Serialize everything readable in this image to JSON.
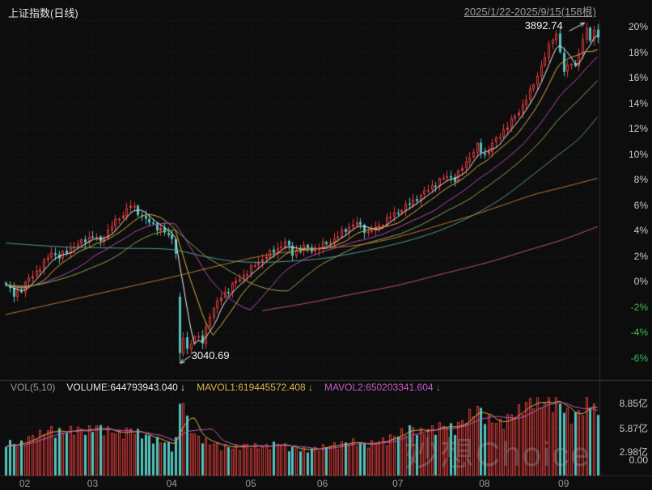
{
  "header": {
    "title": "上证指数(日线)",
    "date_range": "2025/1/22-2025/9/15(158根)"
  },
  "volume_header": {
    "indicator": "VOL(5,10)",
    "volume": "VOLUME:644793943.040 ↓",
    "mavol1": "MAVOL1:619445572.408 ↓",
    "mavol2": "MAVOL2:650203341.604 ↓"
  },
  "annotations": {
    "high": "3892.74",
    "low": "3040.69"
  },
  "watermark": "妙想Choice",
  "colors": {
    "background": "#0d0d0d",
    "up": "#e23b3b",
    "down": "#54c3bd",
    "grid": "#2b2b2b",
    "grid_vertical": "#232323",
    "separator": "#3a3a3a",
    "axis_text": "#c8c8c8",
    "axis_negative": "#3cb75c",
    "annotation": "#e8e8e8",
    "mavol1": "#d9b44a",
    "mavol2": "#c45ac4"
  },
  "chart_data": {
    "type": "candlestick",
    "title": "上证指数(日线)",
    "subtitle": "2025/1/22-2025/9/15(158根)",
    "bars": 158,
    "y_unit": "percent_change_vs_range_start",
    "y_ticks": [
      {
        "label": "20%",
        "value": 20
      },
      {
        "label": "18%",
        "value": 18
      },
      {
        "label": "16%",
        "value": 16
      },
      {
        "label": "14%",
        "value": 14
      },
      {
        "label": "12%",
        "value": 12
      },
      {
        "label": "10%",
        "value": 10
      },
      {
        "label": "8%",
        "value": 8
      },
      {
        "label": "6%",
        "value": 6
      },
      {
        "label": "4%",
        "value": 4
      },
      {
        "label": "2%",
        "value": 2
      },
      {
        "label": "0%",
        "value": 0
      },
      {
        "label": "-2%",
        "value": -2
      },
      {
        "label": "-4%",
        "value": -4
      },
      {
        "label": "-6%",
        "value": -6
      }
    ],
    "month_ticks": [
      {
        "label": "02",
        "bar": 5
      },
      {
        "label": "03",
        "bar": 23
      },
      {
        "label": "04",
        "bar": 44
      },
      {
        "label": "05",
        "bar": 65
      },
      {
        "label": "06",
        "bar": 84
      },
      {
        "label": "07",
        "bar": 104
      },
      {
        "label": "08",
        "bar": 127
      },
      {
        "label": "09",
        "bar": 148
      }
    ],
    "vol_ticks": [
      {
        "label": "8.85亿",
        "value": 8.85
      },
      {
        "label": "5.87亿",
        "value": 5.87
      },
      {
        "label": "2.98亿",
        "value": 2.98
      },
      {
        "label": "0.00",
        "value": 0
      }
    ],
    "high_annotation": {
      "bar": 154,
      "pct": 20.3,
      "price": "3892.74"
    },
    "low_annotation": {
      "bar": 46,
      "pct": -6.3,
      "price": "3040.69"
    },
    "close_path": [
      [
        0,
        -0.3
      ],
      [
        2,
        -1.1
      ],
      [
        4,
        -0.6
      ],
      [
        6,
        0.2
      ],
      [
        9,
        1.1
      ],
      [
        12,
        2.3
      ],
      [
        14,
        1.9
      ],
      [
        17,
        2.6
      ],
      [
        20,
        3.1
      ],
      [
        23,
        3.6
      ],
      [
        25,
        3.1
      ],
      [
        28,
        4.4
      ],
      [
        31,
        5.3
      ],
      [
        33,
        6.0
      ],
      [
        35,
        5.4
      ],
      [
        38,
        4.6
      ],
      [
        41,
        4.1
      ],
      [
        44,
        3.3
      ],
      [
        45,
        2.4
      ],
      [
        46,
        -5.8
      ],
      [
        47,
        -4.4
      ],
      [
        48,
        -5.4
      ],
      [
        50,
        -4.2
      ],
      [
        52,
        -4.8
      ],
      [
        54,
        -2.6
      ],
      [
        57,
        -1.2
      ],
      [
        60,
        -0.3
      ],
      [
        63,
        0.5
      ],
      [
        66,
        1.3
      ],
      [
        69,
        2.0
      ],
      [
        72,
        2.6
      ],
      [
        74,
        3.1
      ],
      [
        76,
        2.2
      ],
      [
        79,
        2.7
      ],
      [
        82,
        2.4
      ],
      [
        84,
        2.9
      ],
      [
        87,
        3.3
      ],
      [
        90,
        4.1
      ],
      [
        93,
        4.6
      ],
      [
        96,
        3.8
      ],
      [
        99,
        4.4
      ],
      [
        102,
        5.1
      ],
      [
        105,
        5.7
      ],
      [
        108,
        6.3
      ],
      [
        111,
        7.0
      ],
      [
        114,
        7.7
      ],
      [
        117,
        8.3
      ],
      [
        119,
        8.0
      ],
      [
        122,
        9.4
      ],
      [
        125,
        10.6
      ],
      [
        127,
        9.9
      ],
      [
        129,
        10.8
      ],
      [
        131,
        11.5
      ],
      [
        134,
        12.6
      ],
      [
        137,
        13.8
      ],
      [
        139,
        14.9
      ],
      [
        141,
        16.2
      ],
      [
        143,
        17.6
      ],
      [
        145,
        19.2
      ],
      [
        146,
        19.4
      ],
      [
        147,
        18.0
      ],
      [
        148,
        16.4
      ],
      [
        149,
        16.9
      ],
      [
        150,
        17.3
      ],
      [
        151,
        16.8
      ],
      [
        152,
        17.9
      ],
      [
        153,
        18.9
      ],
      [
        154,
        19.9
      ],
      [
        155,
        19.1
      ],
      [
        156,
        19.6
      ],
      [
        157,
        19.2
      ]
    ],
    "overrides": {
      "0": {
        "open": -0.1
      },
      "46": {
        "open": -1.2,
        "low": -6.3
      },
      "154": {
        "high": 20.3
      }
    },
    "ma_lines": [
      {
        "name": "MA5",
        "color": "#f0f0f0",
        "period": 5
      },
      {
        "name": "MA10",
        "color": "#d9b44a",
        "period": 10
      },
      {
        "name": "MA20",
        "color": "#b44bb4",
        "period": 20
      },
      {
        "name": "MA30",
        "color": "#93a84e",
        "period": 30
      },
      {
        "name": "MA60",
        "color": "#4f9e97",
        "path": [
          [
            0,
            3.0
          ],
          [
            16,
            2.7
          ],
          [
            32,
            2.6
          ],
          [
            44,
            2.5
          ],
          [
            52,
            2.0
          ],
          [
            60,
            1.6
          ],
          [
            68,
            1.5
          ],
          [
            76,
            1.6
          ],
          [
            84,
            1.8
          ],
          [
            92,
            2.2
          ],
          [
            100,
            2.7
          ],
          [
            108,
            3.3
          ],
          [
            116,
            4.1
          ],
          [
            124,
            5.2
          ],
          [
            132,
            6.6
          ],
          [
            140,
            8.4
          ],
          [
            146,
            9.8
          ],
          [
            152,
            11.2
          ],
          [
            157,
            12.9
          ]
        ]
      },
      {
        "name": "MA120",
        "color": "#bd7a30",
        "path": [
          [
            0,
            -2.6
          ],
          [
            12,
            -1.8
          ],
          [
            24,
            -1.0
          ],
          [
            36,
            -0.2
          ],
          [
            45,
            0.4
          ],
          [
            56,
            1.2
          ],
          [
            68,
            2.0
          ],
          [
            80,
            2.5
          ],
          [
            92,
            2.8
          ],
          [
            100,
            3.2
          ],
          [
            108,
            3.8
          ],
          [
            116,
            4.5
          ],
          [
            124,
            5.2
          ],
          [
            132,
            6.0
          ],
          [
            140,
            6.8
          ],
          [
            148,
            7.4
          ],
          [
            157,
            8.1
          ]
        ]
      },
      {
        "name": "MA250",
        "color": "#c9506e",
        "path": [
          [
            68,
            -2.3
          ],
          [
            80,
            -1.7
          ],
          [
            92,
            -1.0
          ],
          [
            104,
            -0.3
          ],
          [
            116,
            0.6
          ],
          [
            128,
            1.5
          ],
          [
            138,
            2.4
          ],
          [
            148,
            3.3
          ],
          [
            157,
            4.3
          ]
        ]
      }
    ],
    "volume_path": [
      [
        0,
        4.0
      ],
      [
        3,
        3.4
      ],
      [
        6,
        4.3
      ],
      [
        9,
        4.8
      ],
      [
        12,
        5.3
      ],
      [
        15,
        4.9
      ],
      [
        18,
        5.4
      ],
      [
        21,
        5.1
      ],
      [
        24,
        5.6
      ],
      [
        27,
        5.2
      ],
      [
        30,
        4.8
      ],
      [
        33,
        5.3
      ],
      [
        36,
        4.7
      ],
      [
        39,
        4.2
      ],
      [
        42,
        3.8
      ],
      [
        44,
        3.3
      ],
      [
        45,
        4.1
      ],
      [
        46,
        8.2
      ],
      [
        47,
        8.8
      ],
      [
        48,
        6.3
      ],
      [
        50,
        4.6
      ],
      [
        53,
        3.9
      ],
      [
        56,
        3.5
      ],
      [
        60,
        3.2
      ],
      [
        64,
        3.5
      ],
      [
        68,
        3.3
      ],
      [
        72,
        3.7
      ],
      [
        76,
        3.1
      ],
      [
        80,
        2.9
      ],
      [
        84,
        3.3
      ],
      [
        88,
        3.6
      ],
      [
        92,
        3.9
      ],
      [
        95,
        3.5
      ],
      [
        98,
        3.8
      ],
      [
        101,
        4.2
      ],
      [
        104,
        4.7
      ],
      [
        107,
        5.5
      ],
      [
        110,
        5.0
      ],
      [
        113,
        5.4
      ],
      [
        116,
        5.8
      ],
      [
        119,
        5.4
      ],
      [
        122,
        6.6
      ],
      [
        125,
        7.8
      ],
      [
        128,
        6.4
      ],
      [
        131,
        6.0
      ],
      [
        134,
        6.9
      ],
      [
        137,
        7.8
      ],
      [
        140,
        8.8
      ],
      [
        142,
        8.1
      ],
      [
        144,
        8.6
      ],
      [
        146,
        8.9
      ],
      [
        148,
        7.6
      ],
      [
        150,
        6.7
      ],
      [
        152,
        7.2
      ],
      [
        154,
        8.3
      ],
      [
        156,
        8.2
      ],
      [
        157,
        6.5
      ]
    ],
    "mavol_lines": [
      {
        "name": "MAVOL1",
        "color": "#d9b44a",
        "period": 5
      },
      {
        "name": "MAVOL2",
        "color": "#c45ac4",
        "period": 10
      }
    ]
  }
}
